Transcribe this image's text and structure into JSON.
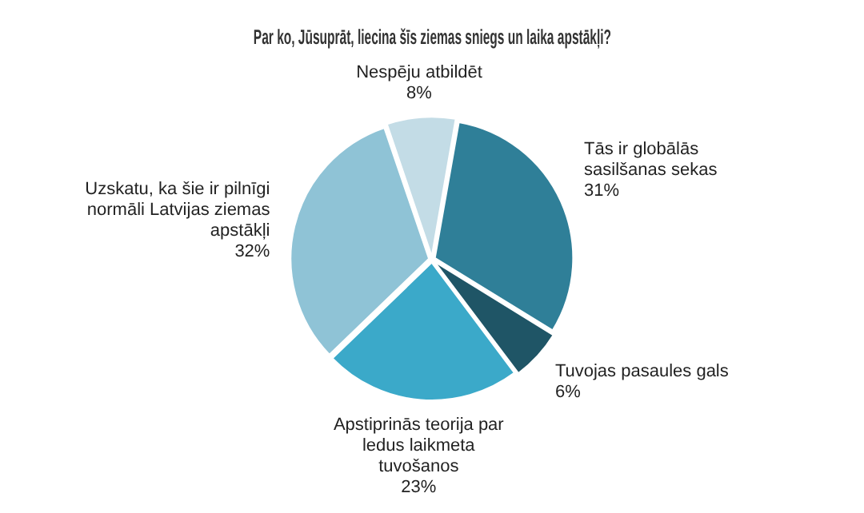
{
  "chart_data": {
    "type": "pie",
    "title": "Par ko, Jūsuprāt, liecina šīs ziemas sniegs un laika apstākļi?",
    "categories": [
      "Tās ir globālās sasilšanas sekas",
      "Tuvojas pasaules gals",
      "Apstiprinās teorija par ledus laikmeta tuvošanos",
      "Uzskatu, ka šie ir pilnīgi normāli Latvijas ziemas apstākļi",
      "Nespēju atbildēt"
    ],
    "values": [
      31,
      6,
      23,
      32,
      8
    ],
    "value_labels": [
      "31%",
      "6%",
      "23%",
      "32%",
      "8%"
    ],
    "colors": [
      "#2f7f98",
      "#1f5566",
      "#3ba9c9",
      "#8fc3d6",
      "#c3dce6"
    ]
  }
}
